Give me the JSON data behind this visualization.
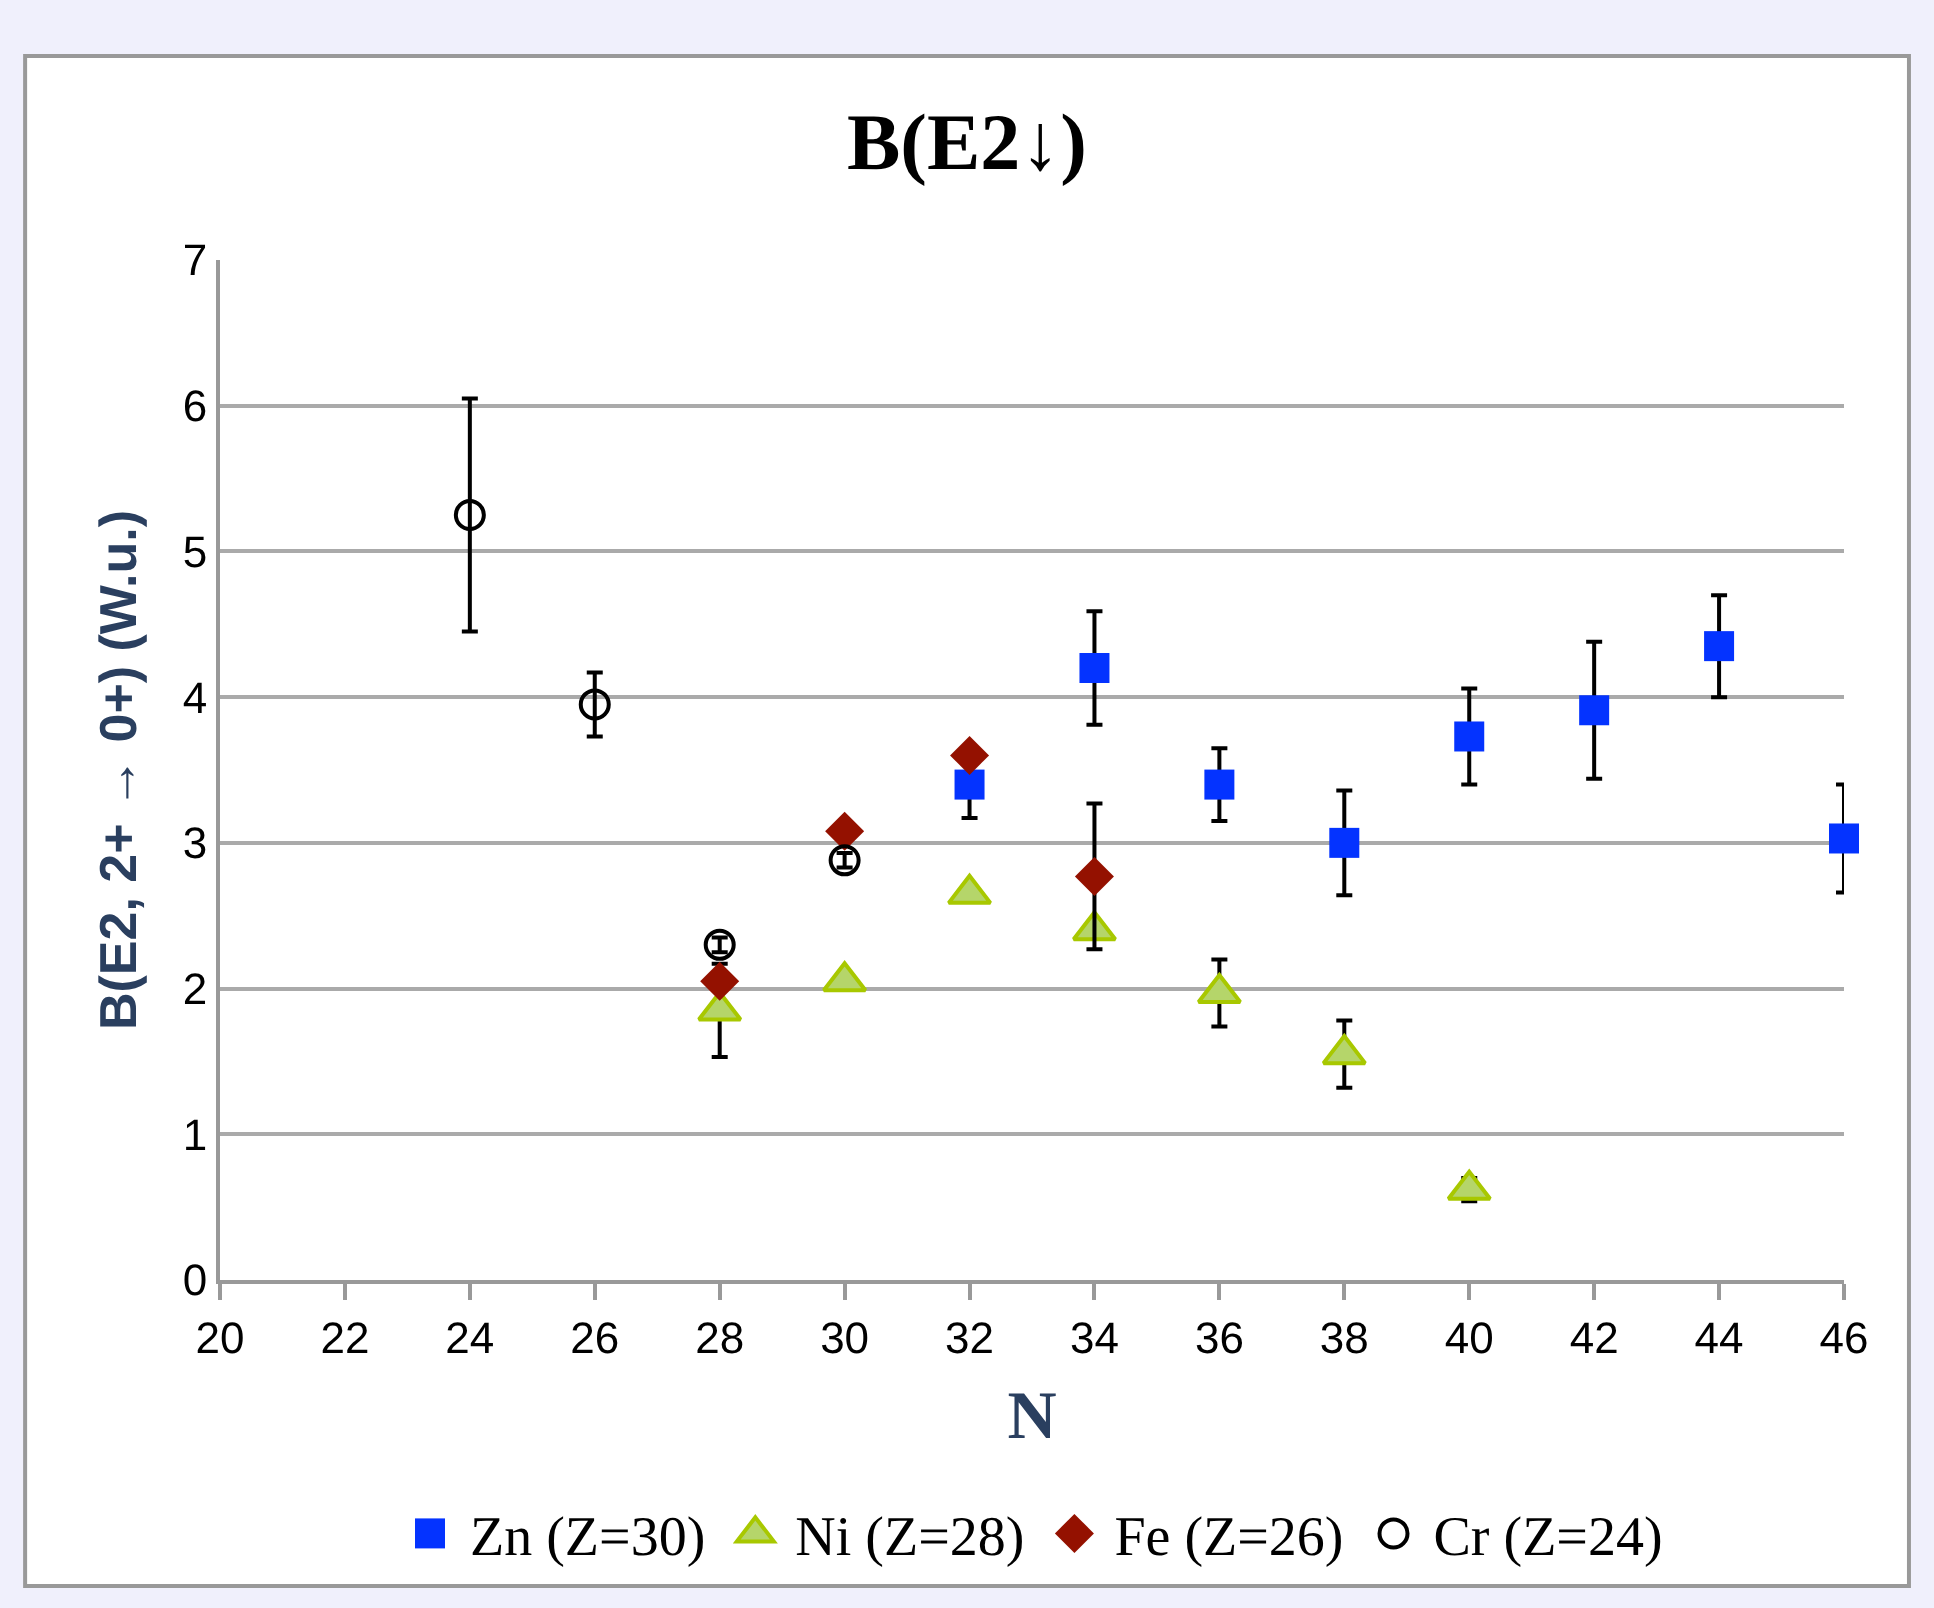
{
  "chart_data": {
    "type": "scatter",
    "title": "B(E2↓)",
    "xlabel": "N",
    "ylabel": "B(E2, 2+ → 0+) (W.u.)",
    "xlim": [
      20,
      46
    ],
    "xticks": [
      20,
      22,
      24,
      26,
      28,
      30,
      32,
      34,
      36,
      38,
      40,
      42,
      44,
      46
    ],
    "ylim": [
      0,
      7
    ],
    "yticks": [
      0,
      1,
      2,
      3,
      4,
      5,
      6,
      7
    ],
    "grid": "y",
    "legend": "bottom",
    "series": [
      {
        "name": "Zn (Z=30)",
        "color": "#0433ff",
        "marker": "square",
        "x": [
          32,
          34,
          36,
          38,
          40,
          42,
          44,
          46
        ],
        "values": [
          3.4,
          4.2,
          3.4,
          3.0,
          3.73,
          3.91,
          4.35,
          3.03
        ],
        "errors": [
          0.23,
          0.39,
          0.25,
          0.36,
          0.33,
          0.47,
          0.35,
          0.37
        ]
      },
      {
        "name": "Ni (Z=28)",
        "color": "#b5d56a",
        "marker": "triangle",
        "x": [
          28,
          30,
          32,
          34,
          36,
          38,
          40
        ],
        "values": [
          1.85,
          2.05,
          2.65,
          2.4,
          1.97,
          1.55,
          0.62
        ],
        "errors": [
          0.32,
          null,
          null,
          null,
          0.23,
          0.23,
          0.08
        ]
      },
      {
        "name": "Fe (Z=26)",
        "color": "#941100",
        "marker": "diamond",
        "x": [
          28,
          30,
          32,
          34
        ],
        "values": [
          2.05,
          3.08,
          3.6,
          2.77
        ],
        "errors": [
          null,
          null,
          null,
          0.5
        ]
      },
      {
        "name": "Cr (Z=24)",
        "color": "#000000",
        "marker": "circle-open",
        "x": [
          24,
          26,
          28,
          30
        ],
        "values": [
          5.25,
          3.95,
          2.3,
          2.88
        ],
        "errors": [
          0.8,
          0.22,
          0.05,
          0.05
        ]
      }
    ]
  }
}
